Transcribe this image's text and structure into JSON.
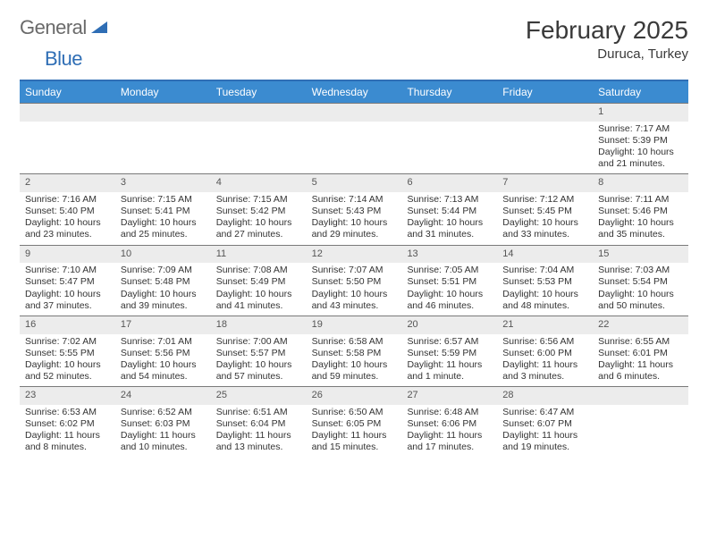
{
  "logo": {
    "text1": "General",
    "text2": "Blue",
    "text1_color": "#6a6a6a",
    "text2_color": "#2f6eb5",
    "triangle_color": "#2f6eb5"
  },
  "title": "February 2025",
  "location": "Duruca, Turkey",
  "colors": {
    "header_bar": "#3b8bd0",
    "top_rule": "#2f6eb5",
    "row_rule": "#7a7a7a",
    "daynum_bg": "#ececec",
    "text": "#333333",
    "background": "#ffffff"
  },
  "fonts": {
    "title_size": 28,
    "location_size": 15,
    "dow_size": 12,
    "body_size": 10.5
  },
  "days_of_week": [
    "Sunday",
    "Monday",
    "Tuesday",
    "Wednesday",
    "Thursday",
    "Friday",
    "Saturday"
  ],
  "weeks": [
    [
      {
        "n": "",
        "sunrise": "",
        "sunset": "",
        "daylight": ""
      },
      {
        "n": "",
        "sunrise": "",
        "sunset": "",
        "daylight": ""
      },
      {
        "n": "",
        "sunrise": "",
        "sunset": "",
        "daylight": ""
      },
      {
        "n": "",
        "sunrise": "",
        "sunset": "",
        "daylight": ""
      },
      {
        "n": "",
        "sunrise": "",
        "sunset": "",
        "daylight": ""
      },
      {
        "n": "",
        "sunrise": "",
        "sunset": "",
        "daylight": ""
      },
      {
        "n": "1",
        "sunrise": "Sunrise: 7:17 AM",
        "sunset": "Sunset: 5:39 PM",
        "daylight": "Daylight: 10 hours and 21 minutes."
      }
    ],
    [
      {
        "n": "2",
        "sunrise": "Sunrise: 7:16 AM",
        "sunset": "Sunset: 5:40 PM",
        "daylight": "Daylight: 10 hours and 23 minutes."
      },
      {
        "n": "3",
        "sunrise": "Sunrise: 7:15 AM",
        "sunset": "Sunset: 5:41 PM",
        "daylight": "Daylight: 10 hours and 25 minutes."
      },
      {
        "n": "4",
        "sunrise": "Sunrise: 7:15 AM",
        "sunset": "Sunset: 5:42 PM",
        "daylight": "Daylight: 10 hours and 27 minutes."
      },
      {
        "n": "5",
        "sunrise": "Sunrise: 7:14 AM",
        "sunset": "Sunset: 5:43 PM",
        "daylight": "Daylight: 10 hours and 29 minutes."
      },
      {
        "n": "6",
        "sunrise": "Sunrise: 7:13 AM",
        "sunset": "Sunset: 5:44 PM",
        "daylight": "Daylight: 10 hours and 31 minutes."
      },
      {
        "n": "7",
        "sunrise": "Sunrise: 7:12 AM",
        "sunset": "Sunset: 5:45 PM",
        "daylight": "Daylight: 10 hours and 33 minutes."
      },
      {
        "n": "8",
        "sunrise": "Sunrise: 7:11 AM",
        "sunset": "Sunset: 5:46 PM",
        "daylight": "Daylight: 10 hours and 35 minutes."
      }
    ],
    [
      {
        "n": "9",
        "sunrise": "Sunrise: 7:10 AM",
        "sunset": "Sunset: 5:47 PM",
        "daylight": "Daylight: 10 hours and 37 minutes."
      },
      {
        "n": "10",
        "sunrise": "Sunrise: 7:09 AM",
        "sunset": "Sunset: 5:48 PM",
        "daylight": "Daylight: 10 hours and 39 minutes."
      },
      {
        "n": "11",
        "sunrise": "Sunrise: 7:08 AM",
        "sunset": "Sunset: 5:49 PM",
        "daylight": "Daylight: 10 hours and 41 minutes."
      },
      {
        "n": "12",
        "sunrise": "Sunrise: 7:07 AM",
        "sunset": "Sunset: 5:50 PM",
        "daylight": "Daylight: 10 hours and 43 minutes."
      },
      {
        "n": "13",
        "sunrise": "Sunrise: 7:05 AM",
        "sunset": "Sunset: 5:51 PM",
        "daylight": "Daylight: 10 hours and 46 minutes."
      },
      {
        "n": "14",
        "sunrise": "Sunrise: 7:04 AM",
        "sunset": "Sunset: 5:53 PM",
        "daylight": "Daylight: 10 hours and 48 minutes."
      },
      {
        "n": "15",
        "sunrise": "Sunrise: 7:03 AM",
        "sunset": "Sunset: 5:54 PM",
        "daylight": "Daylight: 10 hours and 50 minutes."
      }
    ],
    [
      {
        "n": "16",
        "sunrise": "Sunrise: 7:02 AM",
        "sunset": "Sunset: 5:55 PM",
        "daylight": "Daylight: 10 hours and 52 minutes."
      },
      {
        "n": "17",
        "sunrise": "Sunrise: 7:01 AM",
        "sunset": "Sunset: 5:56 PM",
        "daylight": "Daylight: 10 hours and 54 minutes."
      },
      {
        "n": "18",
        "sunrise": "Sunrise: 7:00 AM",
        "sunset": "Sunset: 5:57 PM",
        "daylight": "Daylight: 10 hours and 57 minutes."
      },
      {
        "n": "19",
        "sunrise": "Sunrise: 6:58 AM",
        "sunset": "Sunset: 5:58 PM",
        "daylight": "Daylight: 10 hours and 59 minutes."
      },
      {
        "n": "20",
        "sunrise": "Sunrise: 6:57 AM",
        "sunset": "Sunset: 5:59 PM",
        "daylight": "Daylight: 11 hours and 1 minute."
      },
      {
        "n": "21",
        "sunrise": "Sunrise: 6:56 AM",
        "sunset": "Sunset: 6:00 PM",
        "daylight": "Daylight: 11 hours and 3 minutes."
      },
      {
        "n": "22",
        "sunrise": "Sunrise: 6:55 AM",
        "sunset": "Sunset: 6:01 PM",
        "daylight": "Daylight: 11 hours and 6 minutes."
      }
    ],
    [
      {
        "n": "23",
        "sunrise": "Sunrise: 6:53 AM",
        "sunset": "Sunset: 6:02 PM",
        "daylight": "Daylight: 11 hours and 8 minutes."
      },
      {
        "n": "24",
        "sunrise": "Sunrise: 6:52 AM",
        "sunset": "Sunset: 6:03 PM",
        "daylight": "Daylight: 11 hours and 10 minutes."
      },
      {
        "n": "25",
        "sunrise": "Sunrise: 6:51 AM",
        "sunset": "Sunset: 6:04 PM",
        "daylight": "Daylight: 11 hours and 13 minutes."
      },
      {
        "n": "26",
        "sunrise": "Sunrise: 6:50 AM",
        "sunset": "Sunset: 6:05 PM",
        "daylight": "Daylight: 11 hours and 15 minutes."
      },
      {
        "n": "27",
        "sunrise": "Sunrise: 6:48 AM",
        "sunset": "Sunset: 6:06 PM",
        "daylight": "Daylight: 11 hours and 17 minutes."
      },
      {
        "n": "28",
        "sunrise": "Sunrise: 6:47 AM",
        "sunset": "Sunset: 6:07 PM",
        "daylight": "Daylight: 11 hours and 19 minutes."
      },
      {
        "n": "",
        "sunrise": "",
        "sunset": "",
        "daylight": ""
      }
    ]
  ]
}
